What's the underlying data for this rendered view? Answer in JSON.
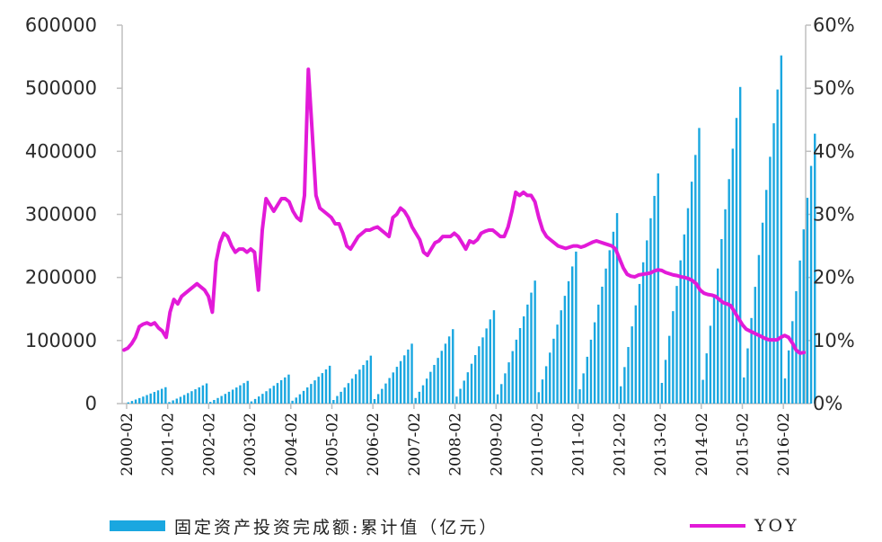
{
  "chart_data": {
    "type": "bar",
    "title": "",
    "left_axis": {
      "ticks": [
        "600000",
        "500000",
        "400000",
        "300000",
        "200000",
        "100000",
        "0"
      ],
      "ylim": [
        0,
        600000
      ]
    },
    "right_axis": {
      "ticks": [
        "60%",
        "50%",
        "40%",
        "30%",
        "20%",
        "10%",
        "0%"
      ],
      "ylim": [
        0,
        60
      ]
    },
    "x_tick_labels": [
      "2000-02",
      "2001-02",
      "2002-02",
      "2003-02",
      "2004-02",
      "2005-02",
      "2006-02",
      "2007-02",
      "2008-02",
      "2009-02",
      "2010-02",
      "2011-02",
      "2012-02",
      "2013-02",
      "2014-02",
      "2015-02",
      "2016-02"
    ],
    "grid": false,
    "legend_position": "bottom",
    "series": [
      {
        "name": "固定资产投资完成额:累计值（亿元）",
        "kind": "bar",
        "axis": "left",
        "color": "#1aa7e0",
        "annual_peaks": {
          "years": [
            "2000",
            "2001",
            "2002",
            "2003",
            "2004",
            "2005",
            "2006",
            "2007",
            "2008",
            "2009",
            "2010",
            "2011",
            "2012",
            "2013",
            "2014",
            "2015",
            "2016"
          ],
          "december_values": [
            26000,
            32000,
            36000,
            46000,
            60000,
            76000,
            95000,
            118000,
            148000,
            195000,
            241000,
            302000,
            365000,
            437000,
            502000,
            552000,
            428000
          ],
          "months_per_year": 11,
          "final_year_months": 9
        }
      },
      {
        "name": "YOY",
        "kind": "line",
        "axis": "right",
        "unit": "%",
        "color": "#e21ad8",
        "values": [
          8.5,
          8.8,
          9.5,
          10.5,
          12.2,
          12.6,
          12.8,
          12.5,
          12.8,
          12.0,
          11.5,
          10.5,
          14.5,
          16.5,
          15.8,
          17.0,
          17.5,
          18.0,
          18.5,
          19.0,
          18.5,
          18.0,
          17.0,
          14.5,
          22.5,
          25.5,
          27.0,
          26.5,
          25.0,
          24.0,
          24.5,
          24.5,
          24.0,
          24.5,
          24.0,
          18.0,
          27.5,
          32.5,
          31.5,
          30.5,
          31.5,
          32.5,
          32.5,
          32.0,
          30.5,
          29.5,
          29.0,
          33.0,
          53.0,
          43.0,
          33.0,
          31.0,
          30.5,
          30.0,
          29.5,
          28.5,
          28.5,
          27.0,
          25.0,
          24.5,
          25.5,
          26.5,
          27.0,
          27.5,
          27.5,
          27.8,
          28.0,
          27.5,
          27.0,
          26.5,
          29.5,
          30.0,
          31.0,
          30.5,
          29.5,
          28.0,
          27.0,
          26.0,
          24.0,
          23.5,
          24.5,
          25.5,
          25.8,
          26.5,
          26.5,
          26.5,
          27.0,
          26.5,
          25.5,
          24.5,
          25.8,
          25.5,
          26.0,
          27.0,
          27.3,
          27.5,
          27.5,
          27.0,
          26.5,
          26.5,
          28.0,
          30.5,
          33.5,
          33.0,
          33.5,
          33.0,
          33.0,
          32.0,
          29.5,
          27.5,
          26.5,
          26.0,
          25.5,
          25.0,
          24.8,
          24.6,
          24.8,
          25.0,
          25.0,
          24.8,
          25.0,
          25.3,
          25.6,
          25.8,
          25.6,
          25.4,
          25.2,
          25.0,
          24.5,
          23.0,
          21.5,
          20.5,
          20.2,
          20.1,
          20.4,
          20.5,
          20.6,
          20.7,
          21.0,
          21.2,
          21.1,
          20.8,
          20.6,
          20.4,
          20.3,
          20.1,
          20.0,
          19.8,
          19.5,
          19.0,
          18.0,
          17.5,
          17.3,
          17.2,
          17.0,
          16.5,
          16.0,
          15.8,
          15.5,
          14.5,
          13.5,
          12.5,
          11.8,
          11.5,
          11.2,
          10.9,
          10.6,
          10.3,
          10.1,
          10.1,
          10.1,
          10.5,
          10.8,
          10.5,
          9.6,
          8.5,
          8.0,
          8.1
        ]
      }
    ]
  }
}
